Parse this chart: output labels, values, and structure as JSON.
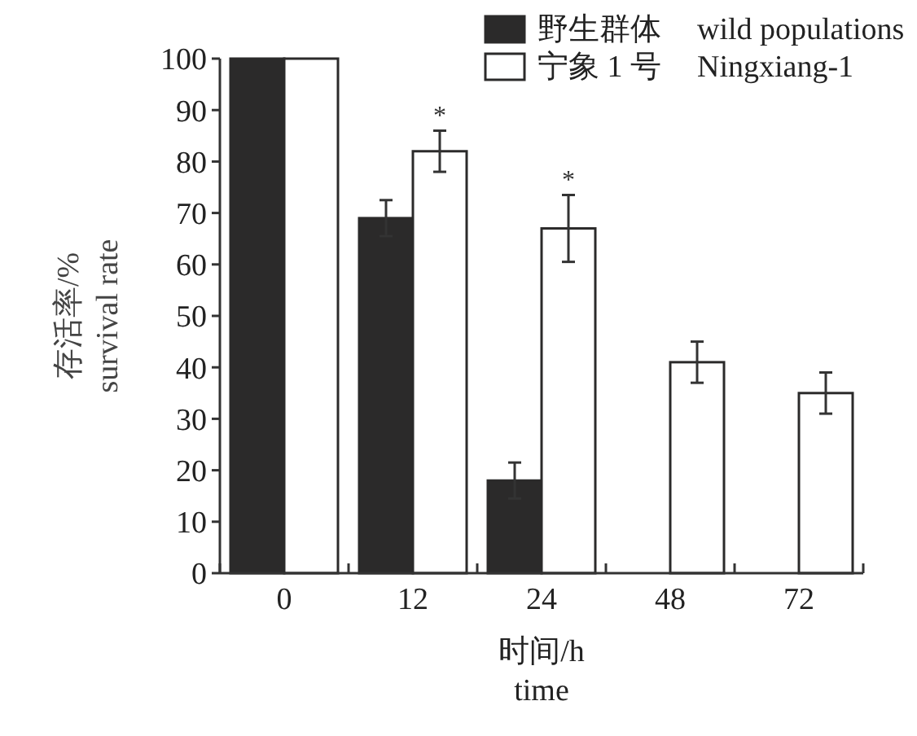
{
  "chart_data": {
    "type": "bar",
    "xlabel": "时间/h\ntime",
    "ylabel": "存活率/%\nsurvival rate",
    "categories": [
      "0",
      "12",
      "24",
      "48",
      "72"
    ],
    "series": [
      {
        "name": "野生群体 wild populations",
        "color": "#2b2a2a",
        "values": [
          100,
          69,
          18,
          0,
          0
        ],
        "errors": [
          null,
          3.5,
          3.5,
          null,
          null
        ]
      },
      {
        "name": "宁象 1 号 Ningxiang-1",
        "color": "#ffffff",
        "values": [
          100,
          82,
          67,
          41,
          35
        ],
        "errors": [
          null,
          4,
          6.5,
          4,
          4
        ]
      }
    ],
    "ylim": [
      0,
      100
    ],
    "yticks": [
      0,
      10,
      20,
      30,
      40,
      50,
      60,
      70,
      80,
      90,
      100
    ],
    "grid": false,
    "legend": "top right",
    "annotations": [
      "*",
      "*"
    ]
  }
}
